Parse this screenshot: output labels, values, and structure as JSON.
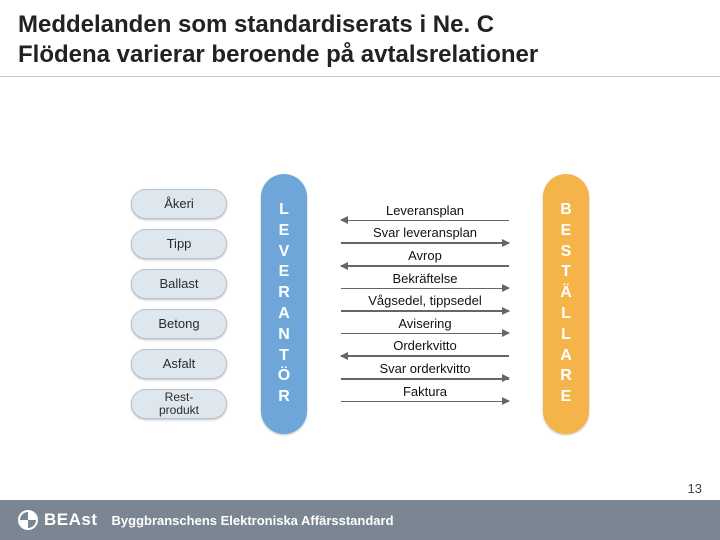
{
  "title": {
    "line1": "Meddelanden som standardiserats i Ne. C",
    "line2": "Flödena varierar beroende på avtalsrelationer",
    "color": "#222222",
    "fontsize": 24,
    "weight": 700
  },
  "left_pills": {
    "bg": "#dfe7ee",
    "border": "#b7c3ce",
    "text_color": "#2b2b2b",
    "items": [
      "Åkeri",
      "Tipp",
      "Ballast",
      "Betong",
      "Asfalt",
      "Rest-\nprodukt"
    ]
  },
  "supplier_band": {
    "bg": "#6fa6d9",
    "text_color": "#ffffff",
    "chars": [
      "L",
      "E",
      "V",
      "E",
      "R",
      "A",
      "N",
      "T",
      "Ö",
      "R"
    ]
  },
  "customer_band": {
    "bg": "#f4b44a",
    "text_color": "#ffffff",
    "chars": [
      "B",
      "E",
      "S",
      "T",
      "Ä",
      "L",
      "L",
      "A",
      "R",
      "E"
    ]
  },
  "flows": {
    "label_color": "#111111",
    "arrow_color": "#666666",
    "label_fontsize": 13,
    "items": [
      {
        "label": "Leveransplan",
        "dir": "left"
      },
      {
        "label": "Svar leveransplan",
        "dir": "right"
      },
      {
        "label": "Avrop",
        "dir": "left"
      },
      {
        "label": "Bekräftelse",
        "dir": "right"
      },
      {
        "label": "Vågsedel, tippsedel",
        "dir": "right"
      },
      {
        "label": "Avisering",
        "dir": "right"
      },
      {
        "label": "Orderkvitto",
        "dir": "left"
      },
      {
        "label": "Svar orderkvitto",
        "dir": "right"
      },
      {
        "label": "Faktura",
        "dir": "right"
      }
    ]
  },
  "footer": {
    "bg": "#7a8691",
    "brand": "BEAst",
    "tagline": "Byggbranschens Elektroniska Affärsstandard",
    "text_color": "#ffffff"
  },
  "page_number": "13"
}
